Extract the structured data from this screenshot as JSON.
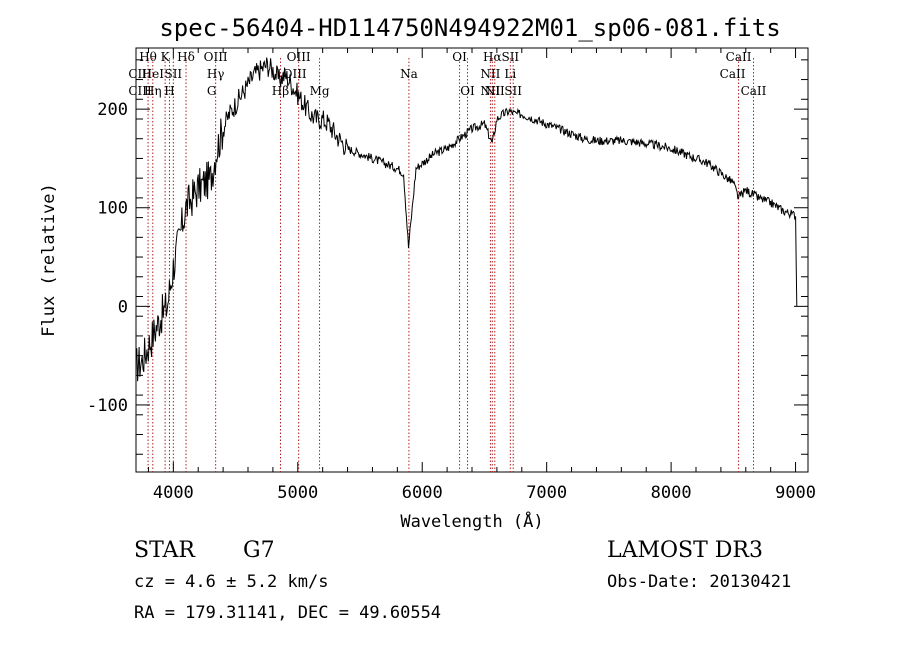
{
  "chart_data": {
    "type": "line",
    "title": "spec-56404-HD114750N494922M01_sp06-081.fits",
    "xlabel": "Wavelength (Å)",
    "ylabel": "Flux (relative)",
    "xlim": [
      3700,
      9100
    ],
    "ylim": [
      -168,
      262
    ],
    "x_ticks": [
      4000,
      5000,
      6000,
      7000,
      8000,
      9000
    ],
    "y_ticks": [
      -100,
      0,
      100,
      200
    ],
    "grid": false,
    "series": [
      {
        "x": [
          3700,
          3750,
          3800,
          3850,
          3900,
          3950,
          4000,
          4050,
          4100,
          4150,
          4200,
          4250,
          4300,
          4350,
          4400,
          4450,
          4500,
          4550,
          4600,
          4650,
          4700,
          4750,
          4800,
          4850,
          4900,
          4950,
          5000,
          5050,
          5100,
          5150,
          5200,
          5250,
          5300,
          5400,
          5500,
          5600,
          5700,
          5800,
          5850,
          5890,
          5950,
          6000,
          6100,
          6200,
          6300,
          6350,
          6400,
          6500,
          6563,
          6600,
          6650,
          6700,
          6750,
          6800,
          6900,
          7000,
          7100,
          7200,
          7300,
          7400,
          7500,
          7600,
          7700,
          7800,
          7900,
          8000,
          8100,
          8200,
          8300,
          8400,
          8500,
          8542,
          8600,
          8700,
          8800,
          8900,
          9000,
          9010
        ],
        "y": [
          -60,
          -55,
          -40,
          -25,
          -10,
          0,
          40,
          70,
          100,
          110,
          120,
          125,
          130,
          160,
          180,
          195,
          205,
          215,
          225,
          235,
          240,
          245,
          240,
          230,
          235,
          225,
          215,
          205,
          195,
          190,
          190,
          185,
          175,
          160,
          155,
          150,
          145,
          140,
          135,
          60,
          140,
          145,
          155,
          160,
          170,
          175,
          180,
          185,
          165,
          190,
          195,
          198,
          195,
          195,
          190,
          185,
          180,
          175,
          170,
          168,
          168,
          168,
          167,
          165,
          163,
          160,
          155,
          150,
          145,
          135,
          125,
          110,
          118,
          110,
          105,
          97,
          92,
          0
        ],
        "label_text": ""
      }
    ],
    "line_markers": [
      {
        "labels": [
          "Hθ",
          "CIII",
          "CIII"
        ],
        "x": 3797,
        "rows": [
          0,
          1,
          2
        ],
        "dx": [
          0,
          -8,
          -8
        ]
      },
      {
        "labels": [
          "HeI",
          "Hη"
        ],
        "x": 3835,
        "rows": [
          1,
          2
        ],
        "dx": [
          0,
          0
        ]
      },
      {
        "labels": [
          "K"
        ],
        "x": 3934,
        "rows": [
          0
        ],
        "dx": [
          0
        ]
      },
      {
        "labels": [
          "H"
        ],
        "x": 3969,
        "rows": [
          2
        ],
        "dx": [
          0
        ]
      },
      {
        "labels": [
          "SII"
        ],
        "x": 4000,
        "rows": [
          1
        ],
        "dx": [
          0
        ]
      },
      {
        "labels": [
          "Hδ"
        ],
        "x": 4102,
        "rows": [
          0
        ],
        "dx": [
          0
        ]
      },
      {
        "labels": [
          "OIII",
          "Hγ",
          "G"
        ],
        "x": 4340,
        "rows": [
          0,
          1,
          2
        ],
        "dx": [
          0,
          0,
          -4
        ]
      },
      {
        "labels": [
          "Hβ"
        ],
        "x": 4861,
        "rows": [
          2
        ],
        "dx": [
          0
        ]
      },
      {
        "labels": [
          "OIII",
          "OIII"
        ],
        "x": 5007,
        "rows": [
          0,
          1
        ],
        "dx": [
          0,
          -4
        ]
      },
      {
        "labels": [
          "Mg"
        ],
        "x": 5175,
        "rows": [
          2
        ],
        "dx": [
          0
        ]
      },
      {
        "labels": [
          "Na"
        ],
        "x": 5893,
        "rows": [
          1
        ],
        "dx": [
          0
        ]
      },
      {
        "labels": [
          "OI"
        ],
        "x": 6300,
        "rows": [
          0
        ],
        "dx": [
          0
        ]
      },
      {
        "labels": [
          "OI"
        ],
        "x": 6364,
        "rows": [
          2
        ],
        "dx": [
          0
        ]
      },
      {
        "labels": [
          "NII",
          "NII"
        ],
        "x": 6548,
        "rows": [
          1,
          2
        ],
        "dx": [
          0,
          0
        ]
      },
      {
        "labels": [
          "Hα"
        ],
        "x": 6563,
        "rows": [
          0
        ],
        "dx": [
          0
        ]
      },
      {
        "labels": [
          "NII"
        ],
        "x": 6583,
        "rows": [
          2
        ],
        "dx": [
          0
        ]
      },
      {
        "labels": [
          "SII",
          "Li"
        ],
        "x": 6708,
        "rows": [
          0,
          1
        ],
        "dx": [
          0,
          0
        ]
      },
      {
        "labels": [
          "SII"
        ],
        "x": 6731,
        "rows": [
          2
        ],
        "dx": [
          0
        ]
      },
      {
        "labels": [
          "CaII",
          "CaII"
        ],
        "x": 8542,
        "rows": [
          0,
          1
        ],
        "dx": [
          0,
          -6
        ]
      },
      {
        "labels": [
          "CaII"
        ],
        "x": 8662,
        "rows": [
          2
        ],
        "dx": [
          0
        ]
      }
    ]
  },
  "info": {
    "object_type": "STAR",
    "subclass": "G7",
    "cz": "cz = 4.6 ± 5.2 km/s",
    "coords": "RA = 179.31141, DEC =  49.60554",
    "survey": "LAMOST DR3",
    "obs_date": "Obs-Date: 20130421"
  }
}
